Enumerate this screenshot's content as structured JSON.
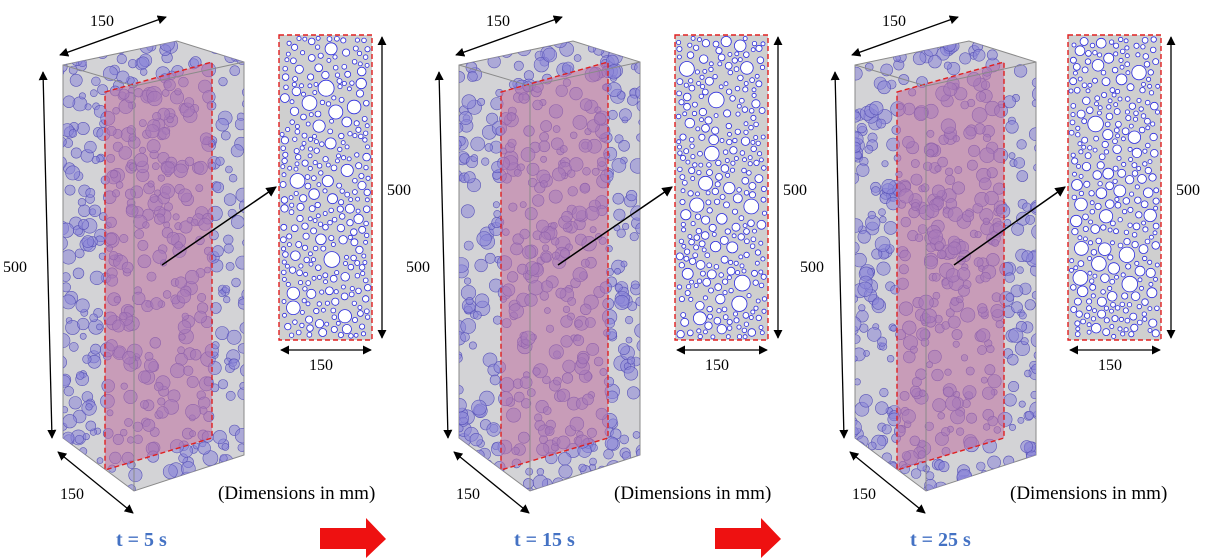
{
  "panels": [
    {
      "time_label": "t = 5 s",
      "depth_label": "150",
      "height_label": "500",
      "width_label": "150",
      "section_height_label": "500",
      "section_width_label": "150",
      "note": "(Dimensions in mm)"
    },
    {
      "time_label": "t = 15 s",
      "depth_label": "150",
      "height_label": "500",
      "width_label": "150",
      "section_height_label": "500",
      "section_width_label": "150",
      "note": "(Dimensions in mm)"
    },
    {
      "time_label": "t = 25 s",
      "depth_label": "150",
      "height_label": "500",
      "width_label": "150",
      "section_height_label": "500",
      "section_width_label": "150",
      "note": "(Dimensions in mm)"
    }
  ],
  "colors": {
    "box_fill": "#d3d3d6",
    "box_edge": "#8a8a8a",
    "particle": "#8c86d8",
    "particle_edge": "#5a55b8",
    "section_plane": "#c06fa0",
    "section_border": "#e02020",
    "section_bg": "#cfcfcf",
    "section_circle_edge": "#2a2adf",
    "time_text": "#4472c4",
    "arrow_red": "#ee1111"
  }
}
